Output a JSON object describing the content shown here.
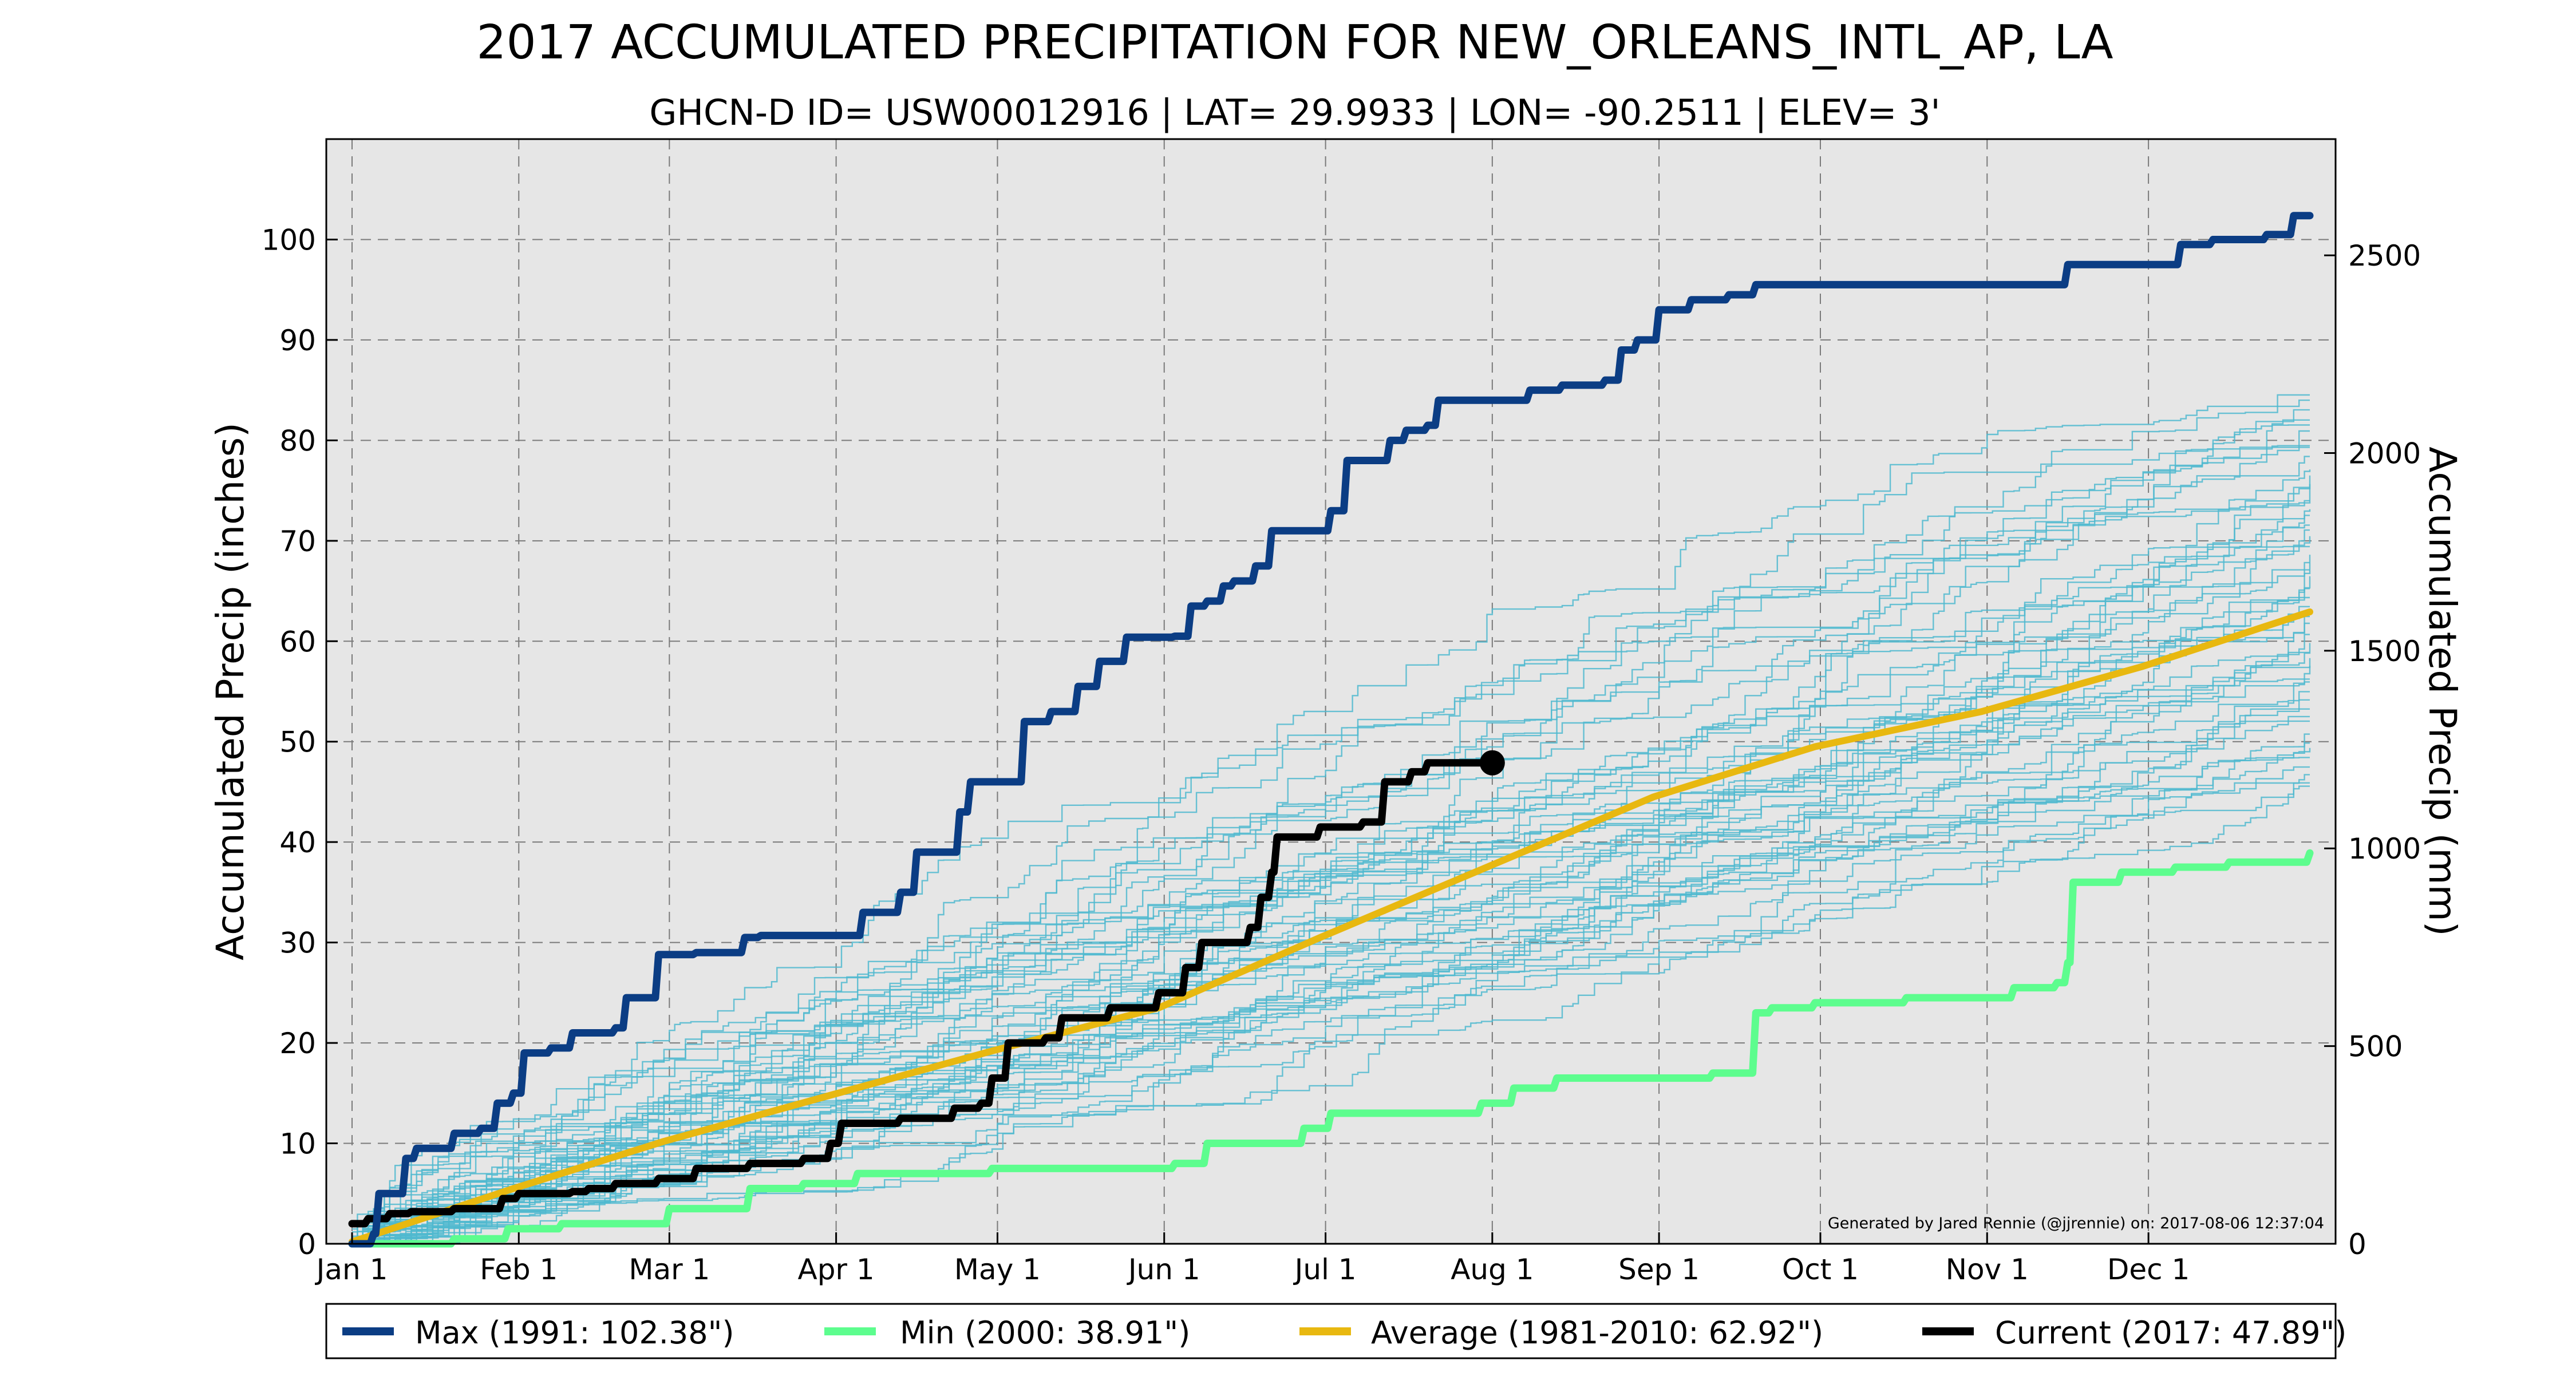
{
  "chart_data": {
    "type": "line",
    "title": "2017 ACCUMULATED PRECIPITATION FOR NEW_ORLEANS_INTL_AP, LA",
    "subtitle": "GHCN-D ID= USW00012916 | LAT= 29.9933 | LON= -90.2511 | ELEV= 3'",
    "ylabel_left": "Accumulated Precip (inches)",
    "ylabel_right": "Accumulated Precip (mm)",
    "xlabel": "",
    "ylim": [
      0,
      110
    ],
    "ylim_mm": [
      0,
      2794
    ],
    "y_ticks": [
      0,
      10,
      20,
      30,
      40,
      50,
      60,
      70,
      80,
      90,
      100
    ],
    "y_ticks_mm": [
      0,
      500,
      1000,
      1500,
      2000,
      2500
    ],
    "x_day_range": [
      1,
      365
    ],
    "x_ticks": [
      {
        "label": "Jan 1",
        "day": 1
      },
      {
        "label": "Feb 1",
        "day": 32
      },
      {
        "label": "Mar 1",
        "day": 60
      },
      {
        "label": "Apr 1",
        "day": 91
      },
      {
        "label": "May 1",
        "day": 121
      },
      {
        "label": "Jun 1",
        "day": 152
      },
      {
        "label": "Jul 1",
        "day": 182
      },
      {
        "label": "Aug 1",
        "day": 213
      },
      {
        "label": "Sep 1",
        "day": 244
      },
      {
        "label": "Oct 1",
        "day": 274
      },
      {
        "label": "Nov 1",
        "day": 305
      },
      {
        "label": "Dec 1",
        "day": 335
      }
    ],
    "grid": true,
    "legend_position": "bottom",
    "footnote": "Generated by Jared Rennie (@jjrennie) on: 2017-08-06 12:37:04",
    "colors": {
      "background": "#e6e6e6",
      "max": "#0b3d84",
      "min": "#5dfd8e",
      "average": "#e8b810",
      "current": "#000000",
      "historical": "#4fb8cf"
    },
    "historical_years": {
      "count": 50,
      "final_range_inches": [
        45,
        85
      ],
      "description_note": ""
    },
    "series": [
      {
        "name": "Max (1991: 102.38\")",
        "key": "max",
        "step": true,
        "points": [
          [
            1,
            0
          ],
          [
            5,
            1
          ],
          [
            6,
            5
          ],
          [
            10,
            5
          ],
          [
            11,
            8.5
          ],
          [
            13,
            9.5
          ],
          [
            19,
            9.5
          ],
          [
            20,
            11
          ],
          [
            25,
            11.5
          ],
          [
            28,
            14
          ],
          [
            31,
            15
          ],
          [
            33,
            19
          ],
          [
            38,
            19.5
          ],
          [
            42,
            21
          ],
          [
            46,
            21
          ],
          [
            50,
            21.5
          ],
          [
            52,
            24.5
          ],
          [
            57,
            24.5
          ],
          [
            58,
            28.8
          ],
          [
            65,
            29
          ],
          [
            72,
            29
          ],
          [
            74,
            30.5
          ],
          [
            77,
            30.7
          ],
          [
            95,
            30.7
          ],
          [
            96,
            33
          ],
          [
            101,
            33
          ],
          [
            103,
            35
          ],
          [
            106,
            39
          ],
          [
            113,
            39
          ],
          [
            114,
            43
          ],
          [
            116,
            46
          ],
          [
            124,
            46
          ],
          [
            126,
            52
          ],
          [
            129,
            52
          ],
          [
            131,
            53
          ],
          [
            134,
            53
          ],
          [
            136,
            55.5
          ],
          [
            140,
            58
          ],
          [
            145,
            60.4
          ],
          [
            154,
            60.5
          ],
          [
            157,
            63.5
          ],
          [
            160,
            64
          ],
          [
            163,
            65.5
          ],
          [
            165,
            66
          ],
          [
            169,
            67.5
          ],
          [
            172,
            71
          ],
          [
            180,
            71
          ],
          [
            183,
            73
          ],
          [
            186,
            78
          ],
          [
            193,
            78
          ],
          [
            194,
            80
          ],
          [
            197,
            81
          ],
          [
            201,
            81.5
          ],
          [
            203,
            84
          ],
          [
            220,
            85
          ],
          [
            226,
            85.5
          ],
          [
            234,
            86
          ],
          [
            237,
            89
          ],
          [
            240,
            90
          ],
          [
            244,
            93
          ],
          [
            250,
            94
          ],
          [
            257,
            94.5
          ],
          [
            262,
            95.5
          ],
          [
            316,
            95.5
          ],
          [
            320,
            97.5
          ],
          [
            340,
            97.5
          ],
          [
            341,
            99.5
          ],
          [
            347,
            100
          ],
          [
            357,
            100.5
          ],
          [
            362,
            102.38
          ],
          [
            365,
            102.38
          ]
        ]
      },
      {
        "name": "Min (2000:  38.91\")",
        "key": "min",
        "step": true,
        "points": [
          [
            1,
            0
          ],
          [
            20,
            0.5
          ],
          [
            30,
            1.5
          ],
          [
            40,
            2
          ],
          [
            60,
            3.5
          ],
          [
            75,
            5.5
          ],
          [
            85,
            6
          ],
          [
            95,
            7
          ],
          [
            120,
            7.5
          ],
          [
            152,
            7.5
          ],
          [
            154,
            8
          ],
          [
            160,
            10
          ],
          [
            175,
            10
          ],
          [
            178,
            11.5
          ],
          [
            183,
            13
          ],
          [
            210,
            13
          ],
          [
            211,
            14
          ],
          [
            215,
            14
          ],
          [
            217,
            15.5
          ],
          [
            225,
            16.5
          ],
          [
            250,
            16.5
          ],
          [
            254,
            17
          ],
          [
            262,
            23
          ],
          [
            265,
            23.5
          ],
          [
            273,
            24
          ],
          [
            290,
            24.5
          ],
          [
            305,
            24.5
          ],
          [
            310,
            25.5
          ],
          [
            318,
            26
          ],
          [
            320,
            28
          ],
          [
            321,
            36
          ],
          [
            330,
            37
          ],
          [
            340,
            37.5
          ],
          [
            350,
            38
          ],
          [
            365,
            38.91
          ]
        ]
      },
      {
        "name": "Average (1981-2010:  62.92\")",
        "key": "average",
        "step": false,
        "points": [
          [
            1,
            0.2
          ],
          [
            31,
            5.5
          ],
          [
            59,
            10.2
          ],
          [
            90,
            14.8
          ],
          [
            120,
            19.2
          ],
          [
            151,
            23.5
          ],
          [
            181,
            30.5
          ],
          [
            212,
            37.5
          ],
          [
            243,
            44.5
          ],
          [
            273,
            49.5
          ],
          [
            304,
            53
          ],
          [
            334,
            57.5
          ],
          [
            365,
            62.92
          ]
        ]
      },
      {
        "name": "Current (2017:  47.89\")",
        "key": "current",
        "step": true,
        "points": [
          [
            1,
            2
          ],
          [
            4,
            2.5
          ],
          [
            8,
            3
          ],
          [
            12,
            3.2
          ],
          [
            20,
            3.5
          ],
          [
            29,
            4.5
          ],
          [
            32,
            5
          ],
          [
            38,
            5
          ],
          [
            42,
            5.2
          ],
          [
            45,
            5.5
          ],
          [
            50,
            6
          ],
          [
            54,
            6
          ],
          [
            58,
            6.5
          ],
          [
            65,
            7.5
          ],
          [
            75,
            8
          ],
          [
            85,
            8.5
          ],
          [
            90,
            10
          ],
          [
            92,
            12
          ],
          [
            103,
            12.5
          ],
          [
            110,
            12.5
          ],
          [
            113,
            13.5
          ],
          [
            118,
            14
          ],
          [
            120,
            16.5
          ],
          [
            123,
            20
          ],
          [
            130,
            20.5
          ],
          [
            133,
            22.5
          ],
          [
            142,
            23.5
          ],
          [
            151,
            25
          ],
          [
            156,
            27.5
          ],
          [
            159,
            30
          ],
          [
            168,
            31.5
          ],
          [
            170,
            34.5
          ],
          [
            172,
            37
          ],
          [
            173,
            40.5
          ],
          [
            181,
            41.5
          ],
          [
            189,
            42
          ],
          [
            193,
            46
          ],
          [
            198,
            47
          ],
          [
            201,
            47.89
          ],
          [
            212,
            47.89
          ]
        ],
        "end_marker_day": 213
      }
    ]
  },
  "legend": {
    "max_label": "Max (1991: 102.38\")",
    "min_label": "Min (2000:  38.91\")",
    "avg_label": "Average (1981-2010:  62.92\")",
    "current_label": "Current (2017:  47.89\")"
  }
}
